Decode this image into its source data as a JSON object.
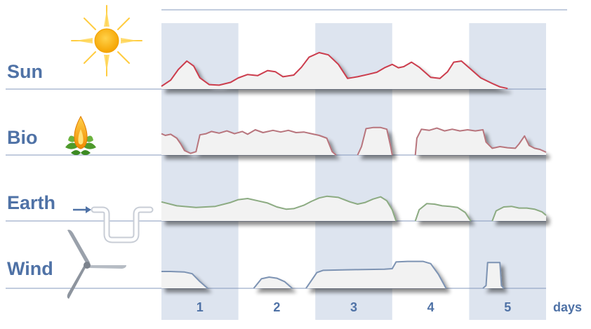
{
  "chart_data": {
    "type": "area",
    "x_unit_label": "days",
    "x_categories": [
      "1",
      "2",
      "3",
      "4",
      "5"
    ],
    "xlim": [
      0,
      5
    ],
    "grid": "alternating day bands",
    "series": [
      {
        "name": "Sun",
        "color": "#cc3d4d",
        "icon": "sun-icon",
        "segments": [
          [
            [
              0,
              0.05
            ],
            [
              0.12,
              0.16
            ],
            [
              0.22,
              0.35
            ],
            [
              0.33,
              0.5
            ],
            [
              0.42,
              0.41
            ],
            [
              0.5,
              0.2
            ],
            [
              0.62,
              0.08
            ],
            [
              0.75,
              0.07
            ],
            [
              0.9,
              0.12
            ],
            [
              1.0,
              0.2
            ],
            [
              1.12,
              0.26
            ],
            [
              1.25,
              0.24
            ],
            [
              1.38,
              0.33
            ],
            [
              1.48,
              0.31
            ],
            [
              1.58,
              0.22
            ],
            [
              1.72,
              0.25
            ],
            [
              1.82,
              0.39
            ],
            [
              1.92,
              0.57
            ],
            [
              2.05,
              0.65
            ],
            [
              2.17,
              0.61
            ],
            [
              2.3,
              0.44
            ],
            [
              2.42,
              0.19
            ],
            [
              2.55,
              0.22
            ],
            [
              2.68,
              0.26
            ],
            [
              2.8,
              0.3
            ],
            [
              2.9,
              0.38
            ],
            [
              3.0,
              0.44
            ],
            [
              3.08,
              0.38
            ],
            [
              3.15,
              0.4
            ],
            [
              3.25,
              0.48
            ],
            [
              3.35,
              0.39
            ],
            [
              3.5,
              0.21
            ],
            [
              3.62,
              0.19
            ],
            [
              3.72,
              0.31
            ],
            [
              3.8,
              0.48
            ],
            [
              3.9,
              0.5
            ],
            [
              4.0,
              0.38
            ],
            [
              4.15,
              0.2
            ],
            [
              4.3,
              0.1
            ],
            [
              4.4,
              0.04
            ],
            [
              4.5,
              0.01
            ]
          ]
        ]
      },
      {
        "name": "Bio",
        "color": "#b8757d",
        "icon": "flame-leaf-icon",
        "segments": [
          [
            [
              0,
              0.38
            ],
            [
              0.05,
              0.35
            ],
            [
              0.12,
              0.37
            ],
            [
              0.2,
              0.3
            ],
            [
              0.25,
              0.2
            ],
            [
              0.3,
              0.08
            ],
            [
              0.38,
              0.03
            ],
            [
              0.45,
              0.06
            ],
            [
              0.5,
              0.36
            ],
            [
              0.58,
              0.38
            ],
            [
              0.65,
              0.42
            ],
            [
              0.75,
              0.39
            ],
            [
              0.85,
              0.43
            ],
            [
              0.95,
              0.38
            ],
            [
              1.05,
              0.42
            ],
            [
              1.12,
              0.37
            ],
            [
              1.22,
              0.45
            ],
            [
              1.32,
              0.4
            ],
            [
              1.45,
              0.44
            ],
            [
              1.55,
              0.41
            ],
            [
              1.65,
              0.44
            ],
            [
              1.75,
              0.4
            ],
            [
              1.85,
              0.41
            ],
            [
              1.95,
              0.38
            ],
            [
              2.05,
              0.35
            ],
            [
              2.15,
              0.3
            ],
            [
              2.22,
              0.06
            ],
            [
              2.27,
              0.0
            ]
          ],
          [
            [
              2.55,
              0.0
            ],
            [
              2.6,
              0.15
            ],
            [
              2.66,
              0.47
            ],
            [
              2.75,
              0.49
            ],
            [
              2.85,
              0.49
            ],
            [
              2.93,
              0.46
            ],
            [
              2.98,
              0.15
            ],
            [
              3.0,
              0.0
            ]
          ],
          [
            [
              3.3,
              0.0
            ],
            [
              3.32,
              0.3
            ],
            [
              3.38,
              0.46
            ],
            [
              3.48,
              0.44
            ],
            [
              3.58,
              0.48
            ],
            [
              3.68,
              0.43
            ],
            [
              3.78,
              0.46
            ],
            [
              3.88,
              0.43
            ],
            [
              3.98,
              0.45
            ],
            [
              4.08,
              0.43
            ],
            [
              4.18,
              0.45
            ],
            [
              4.22,
              0.23
            ],
            [
              4.3,
              0.12
            ],
            [
              4.4,
              0.15
            ],
            [
              4.5,
              0.13
            ],
            [
              4.6,
              0.12
            ],
            [
              4.65,
              0.2
            ],
            [
              4.72,
              0.34
            ],
            [
              4.78,
              0.17
            ],
            [
              4.85,
              0.12
            ],
            [
              4.92,
              0.1
            ],
            [
              5.0,
              0.05
            ]
          ]
        ]
      },
      {
        "name": "Earth",
        "color": "#8cab82",
        "icon": "ground-pipe-icon",
        "segments": [
          [
            [
              0,
              0.34
            ],
            [
              0.2,
              0.27
            ],
            [
              0.45,
              0.24
            ],
            [
              0.7,
              0.26
            ],
            [
              0.9,
              0.33
            ],
            [
              1.0,
              0.38
            ],
            [
              1.12,
              0.4
            ],
            [
              1.25,
              0.36
            ],
            [
              1.38,
              0.32
            ],
            [
              1.5,
              0.25
            ],
            [
              1.62,
              0.21
            ],
            [
              1.72,
              0.22
            ],
            [
              1.85,
              0.28
            ],
            [
              1.95,
              0.35
            ],
            [
              2.05,
              0.41
            ],
            [
              2.15,
              0.44
            ],
            [
              2.3,
              0.42
            ],
            [
              2.45,
              0.34
            ],
            [
              2.55,
              0.3
            ],
            [
              2.65,
              0.33
            ],
            [
              2.75,
              0.39
            ],
            [
              2.85,
              0.43
            ],
            [
              2.93,
              0.36
            ],
            [
              3.0,
              0.2
            ],
            [
              3.05,
              0.0
            ]
          ],
          [
            [
              3.3,
              0.0
            ],
            [
              3.35,
              0.2
            ],
            [
              3.45,
              0.31
            ],
            [
              3.55,
              0.3
            ],
            [
              3.65,
              0.27
            ],
            [
              3.75,
              0.26
            ],
            [
              3.85,
              0.24
            ],
            [
              3.95,
              0.15
            ],
            [
              4.02,
              0.0
            ]
          ],
          [
            [
              4.3,
              0.0
            ],
            [
              4.35,
              0.18
            ],
            [
              4.45,
              0.25
            ],
            [
              4.55,
              0.26
            ],
            [
              4.65,
              0.23
            ],
            [
              4.75,
              0.23
            ],
            [
              4.85,
              0.21
            ],
            [
              4.95,
              0.16
            ],
            [
              5.0,
              0.1
            ]
          ]
        ]
      },
      {
        "name": "Wind",
        "color": "#7d93b3",
        "icon": "wind-turbine-icon",
        "segments": [
          [
            [
              0,
              0.3
            ],
            [
              0.12,
              0.3
            ],
            [
              0.3,
              0.29
            ],
            [
              0.4,
              0.26
            ],
            [
              0.5,
              0.12
            ],
            [
              0.6,
              0.0
            ]
          ],
          [
            [
              1.2,
              0.0
            ],
            [
              1.3,
              0.17
            ],
            [
              1.4,
              0.2
            ],
            [
              1.5,
              0.18
            ],
            [
              1.6,
              0.12
            ],
            [
              1.7,
              0.0
            ]
          ],
          [
            [
              1.88,
              0.0
            ],
            [
              1.95,
              0.14
            ],
            [
              2.02,
              0.28
            ],
            [
              2.1,
              0.32
            ],
            [
              2.4,
              0.33
            ],
            [
              2.9,
              0.34
            ],
            [
              3.0,
              0.35
            ],
            [
              3.05,
              0.47
            ],
            [
              3.2,
              0.48
            ],
            [
              3.4,
              0.48
            ],
            [
              3.5,
              0.44
            ],
            [
              3.6,
              0.25
            ],
            [
              3.7,
              0.0
            ]
          ],
          [
            [
              4.18,
              0.0
            ],
            [
              4.22,
              0.05
            ],
            [
              4.24,
              0.46
            ],
            [
              4.33,
              0.46
            ],
            [
              4.4,
              0.46
            ],
            [
              4.42,
              0.05
            ],
            [
              4.45,
              0.0
            ]
          ]
        ]
      }
    ]
  },
  "colors": {
    "band": "#dde4ef",
    "baseline": "#8598bd",
    "area_fill": "#f2f2f2",
    "text": "#4f72a6",
    "top_rule": "#8598bd"
  }
}
